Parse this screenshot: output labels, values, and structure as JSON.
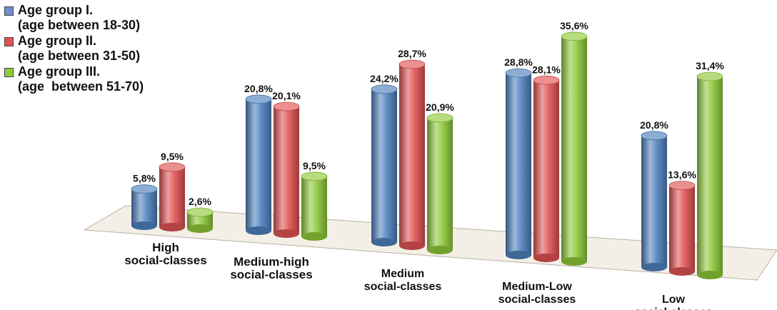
{
  "chart_data": {
    "type": "bar",
    "title": "",
    "xlabel": "",
    "ylabel": "",
    "categories": [
      [
        "High",
        "social-classes"
      ],
      [
        "Medium-high",
        "social-classes"
      ],
      [
        "Medium",
        "social-classes"
      ],
      [
        "Medium-Low",
        "social-classes"
      ],
      [
        "Low",
        "social-classes"
      ]
    ],
    "series": [
      {
        "name": "Age group I.\n(age between 18-30)",
        "color": "#4f81bd",
        "values": [
          5.8,
          20.8,
          24.2,
          28.8,
          20.8
        ],
        "labels": [
          "5,8%",
          "20,8%",
          "24,2%",
          "28,8%",
          "20,8%"
        ]
      },
      {
        "name": "Age group II.\n(age between 31-50)",
        "color": "#e05252",
        "values": [
          9.5,
          20.1,
          28.7,
          28.1,
          13.6
        ],
        "labels": [
          "9,5%",
          "20,1%",
          "28,7%",
          "28,1%",
          "13,6%"
        ]
      },
      {
        "name": "Age group III.\n(age  between 51-70)",
        "color": "#8fc93a",
        "values": [
          2.6,
          9.5,
          20.9,
          35.6,
          31.4
        ],
        "labels": [
          "2,6%",
          "9,5%",
          "20,9%",
          "35,6%",
          "31,4%"
        ]
      }
    ],
    "legend": "top-left",
    "grid": false
  }
}
